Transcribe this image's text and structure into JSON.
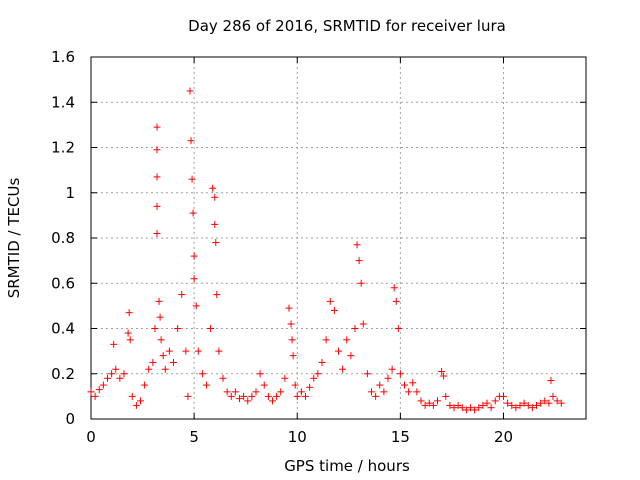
{
  "chart_data": {
    "type": "scatter",
    "title": "Day 286 of 2016, SRMTID for receiver lura",
    "xlabel": "GPS time / hours",
    "ylabel": "SRMTID / TECUs",
    "xlim": [
      0,
      24
    ],
    "ylim": [
      0,
      1.6
    ],
    "xticks": [
      0,
      5,
      10,
      15,
      20
    ],
    "xtick_labels": [
      "0",
      "5",
      "10",
      "15",
      "20"
    ],
    "yticks": [
      0,
      0.2,
      0.4,
      0.6,
      0.8,
      1.0,
      1.2,
      1.4,
      1.6
    ],
    "ytick_labels": [
      "0",
      "0.2",
      "0.4",
      "0.6",
      "0.8",
      "1",
      "1.2",
      "1.4",
      "1.6"
    ],
    "grid": true,
    "marker": "+",
    "color": "#ff0000",
    "series": [
      {
        "name": "SRMTID",
        "x": [
          0.0,
          0.2,
          0.4,
          0.6,
          0.8,
          1.0,
          1.1,
          1.2,
          1.4,
          1.6,
          1.8,
          1.85,
          1.9,
          2.0,
          2.2,
          2.4,
          2.6,
          2.8,
          3.0,
          3.1,
          3.2,
          3.2,
          3.2,
          3.2,
          3.2,
          3.3,
          3.35,
          3.4,
          3.5,
          3.6,
          3.8,
          4.0,
          4.2,
          4.4,
          4.6,
          4.7,
          4.8,
          4.85,
          4.9,
          4.95,
          5.0,
          5.0,
          5.1,
          5.2,
          5.4,
          5.6,
          5.8,
          5.9,
          6.0,
          6.0,
          6.05,
          6.1,
          6.2,
          6.4,
          6.6,
          6.8,
          7.0,
          7.2,
          7.4,
          7.6,
          7.8,
          8.0,
          8.2,
          8.4,
          8.6,
          8.8,
          9.0,
          9.2,
          9.4,
          9.6,
          9.7,
          9.75,
          9.8,
          9.9,
          10.0,
          10.2,
          10.4,
          10.6,
          10.8,
          11.0,
          11.2,
          11.4,
          11.6,
          11.8,
          12.0,
          12.2,
          12.4,
          12.6,
          12.8,
          12.9,
          13.0,
          13.1,
          13.2,
          13.4,
          13.6,
          13.8,
          14.0,
          14.2,
          14.4,
          14.6,
          14.7,
          14.8,
          14.9,
          15.0,
          15.2,
          15.4,
          15.6,
          15.8,
          16.0,
          16.2,
          16.4,
          16.6,
          16.8,
          17.0,
          17.1,
          17.2,
          17.4,
          17.6,
          17.8,
          18.0,
          18.2,
          18.4,
          18.6,
          18.8,
          19.0,
          19.2,
          19.4,
          19.6,
          19.8,
          20.0,
          20.2,
          20.4,
          20.6,
          20.8,
          21.0,
          21.2,
          21.4,
          21.6,
          21.8,
          22.0,
          22.2,
          22.3,
          22.4,
          22.6,
          22.8
        ],
        "y": [
          0.12,
          0.1,
          0.13,
          0.15,
          0.18,
          0.2,
          0.33,
          0.22,
          0.18,
          0.2,
          0.38,
          0.47,
          0.35,
          0.1,
          0.06,
          0.08,
          0.15,
          0.22,
          0.25,
          0.4,
          1.29,
          1.19,
          1.07,
          0.94,
          0.82,
          0.52,
          0.45,
          0.35,
          0.28,
          0.22,
          0.3,
          0.25,
          0.4,
          0.55,
          0.3,
          0.1,
          1.45,
          1.23,
          1.06,
          0.91,
          0.72,
          0.62,
          0.5,
          0.3,
          0.2,
          0.15,
          0.4,
          1.02,
          0.98,
          0.86,
          0.78,
          0.55,
          0.3,
          0.18,
          0.12,
          0.1,
          0.12,
          0.09,
          0.1,
          0.08,
          0.1,
          0.12,
          0.2,
          0.15,
          0.1,
          0.08,
          0.1,
          0.12,
          0.18,
          0.49,
          0.42,
          0.35,
          0.28,
          0.15,
          0.1,
          0.12,
          0.1,
          0.14,
          0.18,
          0.2,
          0.25,
          0.35,
          0.52,
          0.48,
          0.3,
          0.22,
          0.35,
          0.28,
          0.4,
          0.77,
          0.7,
          0.6,
          0.42,
          0.2,
          0.12,
          0.1,
          0.15,
          0.12,
          0.18,
          0.22,
          0.58,
          0.52,
          0.4,
          0.2,
          0.15,
          0.12,
          0.16,
          0.12,
          0.08,
          0.06,
          0.07,
          0.06,
          0.08,
          0.21,
          0.19,
          0.1,
          0.06,
          0.05,
          0.06,
          0.05,
          0.04,
          0.05,
          0.04,
          0.05,
          0.06,
          0.07,
          0.05,
          0.08,
          0.1,
          0.1,
          0.07,
          0.06,
          0.05,
          0.06,
          0.07,
          0.06,
          0.05,
          0.06,
          0.07,
          0.08,
          0.07,
          0.17,
          0.1,
          0.08,
          0.07
        ]
      }
    ]
  }
}
